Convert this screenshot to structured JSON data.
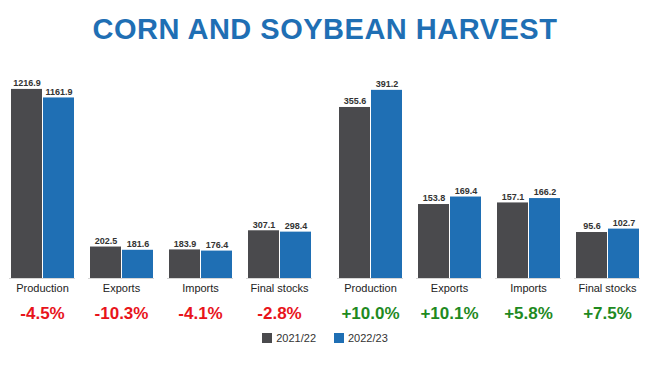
{
  "title": "CORN AND SOYBEAN HARVEST",
  "chart_data": [
    {
      "type": "bar",
      "categories": [
        "Production",
        "Exports",
        "Imports",
        "Final stocks"
      ],
      "series": [
        {
          "name": "2021/22",
          "color": "#4a4a4d",
          "values": [
            1216.9,
            202.5,
            183.9,
            307.1
          ]
        },
        {
          "name": "2022/23",
          "color": "#1f6fb4",
          "values": [
            1161.9,
            181.6,
            176.4,
            298.4
          ]
        }
      ],
      "changes": [
        -4.5,
        -10.3,
        -4.1,
        -2.8
      ],
      "change_labels": [
        "-4.5%",
        "-10.3%",
        "-4.1%",
        "-2.8%"
      ],
      "ylim": [
        0,
        1300
      ],
      "yticks": [],
      "tick_labels": "x",
      "data_labels": true,
      "grid": false,
      "legend": "bottom"
    },
    {
      "type": "bar",
      "categories": [
        "Production",
        "Exports",
        "Imports",
        "Final stocks"
      ],
      "series": [
        {
          "name": "2021/22",
          "color": "#4a4a4d",
          "values": [
            355.6,
            153.8,
            157.1,
            95.6
          ]
        },
        {
          "name": "2022/23",
          "color": "#1f6fb4",
          "values": [
            391.2,
            169.4,
            166.2,
            102.7
          ]
        }
      ],
      "changes": [
        10.0,
        10.1,
        5.8,
        7.5
      ],
      "change_labels": [
        "+10.0%",
        "+10.1%",
        "+5.8%",
        "+7.5%"
      ],
      "ylim": [
        0,
        420
      ],
      "yticks": [],
      "tick_labels": "x",
      "data_labels": true,
      "grid": false,
      "legend": "bottom"
    }
  ]
}
